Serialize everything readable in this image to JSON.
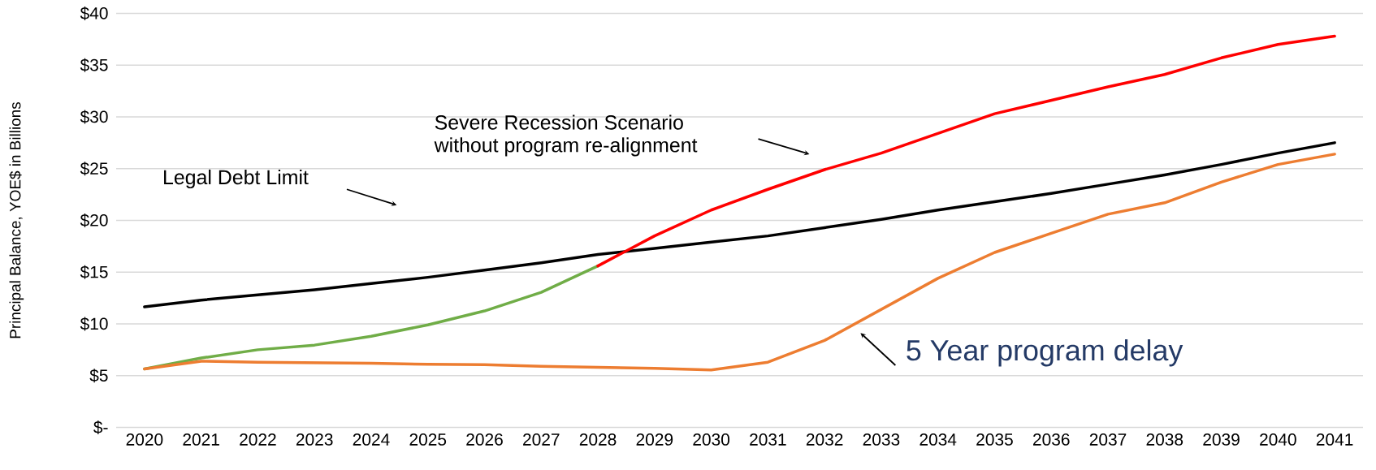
{
  "chart_data": {
    "type": "line",
    "ylabel": "Principal Balance, YOE$ in Billions",
    "categories": [
      "2020",
      "2021",
      "2022",
      "2023",
      "2024",
      "2025",
      "2026",
      "2027",
      "2028",
      "2029",
      "2030",
      "2031",
      "2032",
      "2033",
      "2034",
      "2035",
      "2036",
      "2037",
      "2038",
      "2039",
      "2040",
      "2041"
    ],
    "series": [
      {
        "color": "#000000",
        "values": [
          11.65,
          12.3,
          12.8,
          13.3,
          13.9,
          14.5,
          15.2,
          15.9,
          16.7,
          17.3,
          17.9,
          18.5,
          19.3,
          20.1,
          21.0,
          21.8,
          22.6,
          23.5,
          24.4,
          25.4,
          26.5,
          27.5
        ]
      },
      {
        "color": "#70ad47",
        "values": [
          5.65,
          6.7,
          7.5,
          7.95,
          8.8,
          9.9,
          11.25,
          13.05,
          15.6,
          null,
          null,
          null,
          null,
          null,
          null,
          null,
          null,
          null,
          null,
          null,
          null,
          null
        ]
      },
      {
        "color": "#ff0000",
        "values": [
          null,
          null,
          null,
          null,
          null,
          null,
          null,
          null,
          15.6,
          18.5,
          21.0,
          23.0,
          24.9,
          26.5,
          28.4,
          30.3,
          31.6,
          32.9,
          34.1,
          35.7,
          37.0,
          37.8
        ]
      },
      {
        "color": "#ed7d31",
        "values": [
          5.65,
          6.4,
          6.3,
          6.25,
          6.2,
          6.1,
          6.05,
          5.9,
          5.8,
          5.7,
          5.55,
          6.3,
          8.4,
          11.4,
          14.4,
          16.9,
          18.75,
          20.6,
          21.7,
          23.7,
          25.4,
          26.4
        ]
      }
    ],
    "ylim": [
      0,
      40
    ],
    "yticks": [
      {
        "value": 0,
        "label": "$-"
      },
      {
        "value": 5,
        "label": "$5"
      },
      {
        "value": 10,
        "label": "$10"
      },
      {
        "value": 15,
        "label": "$15"
      },
      {
        "value": 20,
        "label": "$20"
      },
      {
        "value": 25,
        "label": "$25"
      },
      {
        "value": 30,
        "label": "$30"
      },
      {
        "value": 35,
        "label": "$35"
      },
      {
        "value": 40,
        "label": "$40"
      }
    ],
    "grid": "y",
    "marker": "none",
    "line_style": "solid",
    "annotations": [
      "Legal Debt Limit",
      "Severe Recession Scenario\nwithout program re-alignment",
      "5 Year program delay"
    ]
  }
}
